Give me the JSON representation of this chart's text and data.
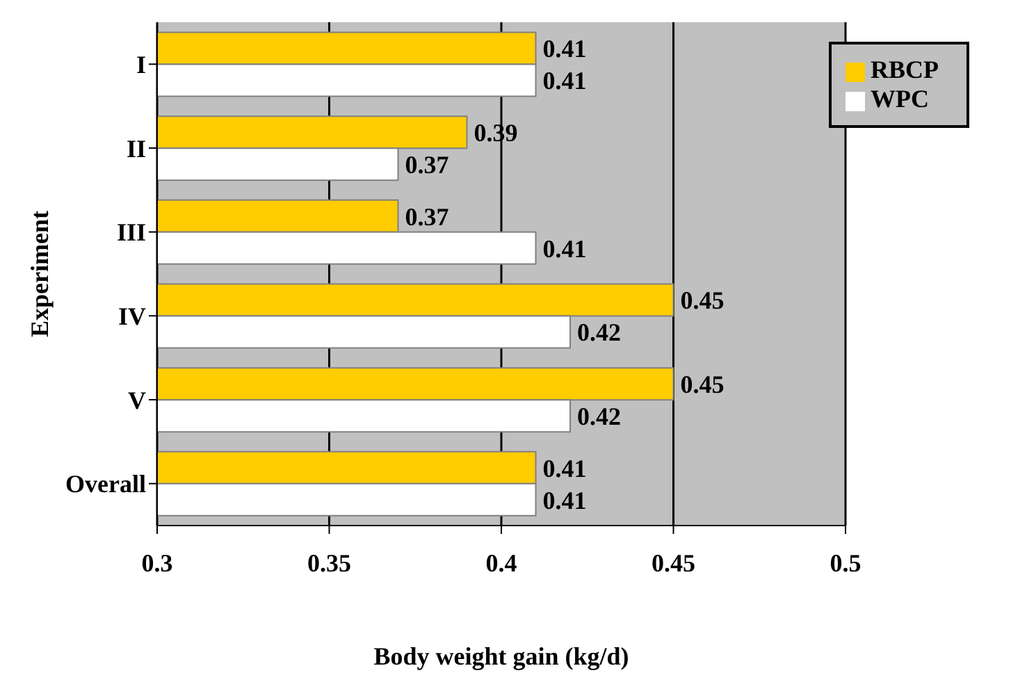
{
  "chart_data": {
    "type": "bar",
    "orientation": "horizontal",
    "xlabel": "Body weight gain (kg/d)",
    "ylabel": "Experiment",
    "categories": [
      "I",
      "II",
      "III",
      "IV",
      "V",
      "Overall"
    ],
    "series": [
      {
        "name": "RBCP",
        "color": "#ffcc00",
        "values": [
          0.41,
          0.39,
          0.37,
          0.45,
          0.45,
          0.41
        ]
      },
      {
        "name": "WPC",
        "color": "#ffffff",
        "values": [
          0.41,
          0.37,
          0.41,
          0.42,
          0.42,
          0.41
        ]
      }
    ],
    "xlim": [
      0.3,
      0.5
    ],
    "xticks": [
      0.3,
      0.35,
      0.4,
      0.45,
      0.5
    ],
    "grid": "x",
    "legend": "top right",
    "data_labels": true
  }
}
